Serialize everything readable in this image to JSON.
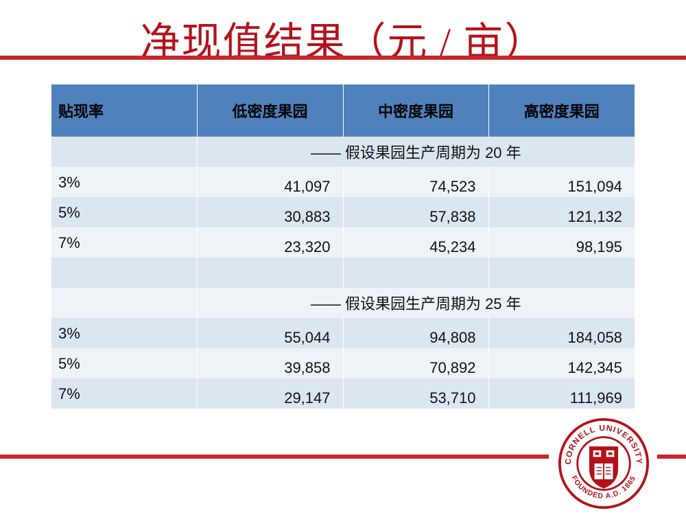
{
  "title": "净现值结果（元 / 亩）",
  "table": {
    "headers": [
      "贴现率",
      "低密度果园",
      "中密度果园",
      "高密度果园"
    ],
    "section1_label": "——  假设果园生产周期为 20 年",
    "section1_rows": [
      {
        "rate": "3%",
        "low": "41,097",
        "mid": "74,523",
        "high": "151,094"
      },
      {
        "rate": "5%",
        "low": "30,883",
        "mid": "57,838",
        "high": "121,132"
      },
      {
        "rate": "7%",
        "low": "23,320",
        "mid": "45,234",
        "high": "98,195"
      }
    ],
    "section2_label": "——  假设果园生产周期为 25 年",
    "section2_rows": [
      {
        "rate": "3%",
        "low": "55,044",
        "mid": "94,808",
        "high": "184,058"
      },
      {
        "rate": "5%",
        "low": "39,858",
        "mid": "70,892",
        "high": "142,345"
      },
      {
        "rate": "7%",
        "low": "29,147",
        "mid": "53,710",
        "high": "111,969"
      }
    ]
  },
  "logo": {
    "text_top": "CORNELL UNIVERSITY",
    "text_bottom": "FOUNDED A.D. 1865"
  },
  "colors": {
    "accent_red": "#b3121b",
    "rule_red": "#c8252c",
    "header_blue": "#4f81bd",
    "row_light": "#dce6f1"
  }
}
